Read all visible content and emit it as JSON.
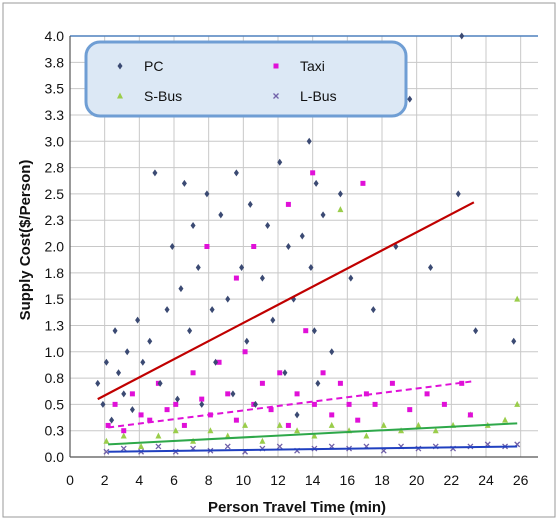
{
  "chart_data": {
    "type": "scatter",
    "title": "",
    "xlabel": "Person Travel Time (min)",
    "ylabel": "Supply Cost($/Person)",
    "xlim": [
      0,
      27
    ],
    "ylim": [
      0,
      4.0
    ],
    "x_ticks": [
      "0",
      "2",
      "4",
      "6",
      "8",
      "10",
      "12",
      "14",
      "16",
      "18",
      "20",
      "22",
      "24",
      "26"
    ],
    "y_ticks": [
      "0.0",
      "0.3",
      "0.5",
      "0.8",
      "1.0",
      "1.3",
      "1.5",
      "1.8",
      "2.0",
      "2.3",
      "2.5",
      "2.8",
      "3.0",
      "3.3",
      "3.5",
      "3.8",
      "4.0"
    ],
    "grid": true,
    "legend_position": "top-left",
    "colors": {
      "PC": "#3b4a73",
      "Taxi": "#e010d8",
      "S-Bus": "#9acd4a",
      "L-Bus": "#7060a8",
      "pc_trend": "#c00000",
      "taxi_trend": "#e010d8",
      "sbus_trend": "#2ea84a",
      "lbus_trend": "#2040c0"
    },
    "series": [
      {
        "name": "PC",
        "marker": "diamond",
        "points": [
          [
            1.6,
            0.7
          ],
          [
            1.9,
            0.5
          ],
          [
            2.1,
            0.9
          ],
          [
            2.4,
            0.35
          ],
          [
            2.6,
            1.2
          ],
          [
            2.8,
            0.8
          ],
          [
            3.1,
            0.6
          ],
          [
            3.3,
            1.0
          ],
          [
            3.6,
            0.45
          ],
          [
            3.9,
            1.3
          ],
          [
            4.2,
            0.9
          ],
          [
            4.6,
            1.1
          ],
          [
            4.9,
            2.7
          ],
          [
            5.2,
            0.7
          ],
          [
            5.6,
            1.4
          ],
          [
            5.9,
            2.0
          ],
          [
            6.2,
            0.55
          ],
          [
            6.4,
            1.6
          ],
          [
            6.6,
            2.6
          ],
          [
            6.9,
            1.2
          ],
          [
            7.1,
            2.2
          ],
          [
            7.4,
            1.8
          ],
          [
            7.6,
            0.5
          ],
          [
            7.9,
            2.5
          ],
          [
            8.2,
            1.4
          ],
          [
            8.4,
            0.9
          ],
          [
            8.7,
            2.3
          ],
          [
            9.1,
            1.5
          ],
          [
            9.4,
            0.6
          ],
          [
            9.6,
            2.7
          ],
          [
            9.9,
            1.8
          ],
          [
            10.2,
            1.1
          ],
          [
            10.4,
            2.4
          ],
          [
            10.7,
            0.5
          ],
          [
            11.1,
            1.7
          ],
          [
            11.4,
            2.2
          ],
          [
            11.7,
            1.3
          ],
          [
            12.1,
            2.8
          ],
          [
            12.4,
            0.8
          ],
          [
            12.6,
            2.0
          ],
          [
            12.9,
            1.5
          ],
          [
            13.1,
            0.4
          ],
          [
            13.4,
            2.1
          ],
          [
            13.8,
            3.0
          ],
          [
            13.9,
            1.8
          ],
          [
            14.1,
            1.2
          ],
          [
            14.2,
            2.6
          ],
          [
            14.3,
            0.7
          ],
          [
            14.6,
            2.3
          ],
          [
            15.1,
            1.0
          ],
          [
            15.6,
            2.5
          ],
          [
            16.2,
            1.7
          ],
          [
            17.5,
            1.4
          ],
          [
            18.8,
            2.0
          ],
          [
            19.6,
            3.4
          ],
          [
            20.8,
            1.8
          ],
          [
            22.4,
            2.5
          ],
          [
            22.6,
            4.0
          ],
          [
            23.4,
            1.2
          ],
          [
            25.6,
            1.1
          ]
        ]
      },
      {
        "name": "Taxi",
        "marker": "square",
        "points": [
          [
            2.2,
            0.3
          ],
          [
            2.6,
            0.5
          ],
          [
            3.1,
            0.25
          ],
          [
            3.6,
            0.6
          ],
          [
            4.1,
            0.4
          ],
          [
            4.6,
            0.35
          ],
          [
            5.1,
            0.7
          ],
          [
            5.6,
            0.45
          ],
          [
            6.1,
            0.5
          ],
          [
            6.6,
            0.3
          ],
          [
            7.1,
            0.8
          ],
          [
            7.6,
            0.55
          ],
          [
            8.1,
            0.4
          ],
          [
            8.6,
            0.9
          ],
          [
            9.1,
            0.6
          ],
          [
            9.6,
            0.35
          ],
          [
            10.1,
            1.0
          ],
          [
            10.6,
            0.5
          ],
          [
            11.1,
            0.7
          ],
          [
            11.6,
            0.45
          ],
          [
            12.1,
            0.8
          ],
          [
            12.6,
            0.3
          ],
          [
            13.1,
            0.6
          ],
          [
            13.6,
            1.2
          ],
          [
            14.1,
            0.5
          ],
          [
            14.6,
            0.8
          ],
          [
            15.1,
            0.4
          ],
          [
            15.6,
            0.7
          ],
          [
            16.1,
            0.5
          ],
          [
            16.6,
            0.35
          ],
          [
            17.1,
            0.6
          ],
          [
            17.6,
            0.5
          ],
          [
            18.6,
            0.7
          ],
          [
            19.6,
            0.45
          ],
          [
            20.6,
            0.6
          ],
          [
            21.6,
            0.5
          ],
          [
            22.6,
            0.7
          ],
          [
            23.1,
            0.4
          ],
          [
            7.9,
            2.0
          ],
          [
            9.6,
            1.7
          ],
          [
            14.0,
            2.7
          ],
          [
            16.9,
            2.6
          ],
          [
            10.6,
            2.0
          ],
          [
            12.6,
            2.4
          ]
        ]
      },
      {
        "name": "S-Bus",
        "marker": "triangle",
        "points": [
          [
            2.1,
            0.15
          ],
          [
            3.1,
            0.2
          ],
          [
            4.1,
            0.1
          ],
          [
            5.1,
            0.2
          ],
          [
            6.1,
            0.25
          ],
          [
            7.1,
            0.15
          ],
          [
            8.1,
            0.25
          ],
          [
            9.1,
            0.2
          ],
          [
            10.1,
            0.3
          ],
          [
            11.1,
            0.15
          ],
          [
            12.1,
            0.3
          ],
          [
            13.1,
            0.25
          ],
          [
            14.1,
            0.2
          ],
          [
            15.1,
            0.3
          ],
          [
            15.6,
            2.35
          ],
          [
            16.1,
            0.25
          ],
          [
            17.1,
            0.2
          ],
          [
            18.1,
            0.3
          ],
          [
            19.1,
            0.25
          ],
          [
            20.1,
            0.3
          ],
          [
            21.1,
            0.25
          ],
          [
            22.1,
            0.3
          ],
          [
            23.1,
            0.4
          ],
          [
            24.1,
            0.3
          ],
          [
            25.1,
            0.35
          ],
          [
            25.8,
            0.5
          ],
          [
            25.8,
            1.5
          ]
        ]
      },
      {
        "name": "L-Bus",
        "marker": "x",
        "points": [
          [
            2.1,
            0.05
          ],
          [
            3.1,
            0.08
          ],
          [
            4.1,
            0.05
          ],
          [
            5.1,
            0.1
          ],
          [
            6.1,
            0.05
          ],
          [
            7.1,
            0.08
          ],
          [
            8.1,
            0.06
          ],
          [
            9.1,
            0.1
          ],
          [
            10.1,
            0.05
          ],
          [
            11.1,
            0.08
          ],
          [
            12.1,
            0.1
          ],
          [
            13.1,
            0.06
          ],
          [
            14.1,
            0.08
          ],
          [
            15.1,
            0.1
          ],
          [
            16.1,
            0.08
          ],
          [
            17.1,
            0.1
          ],
          [
            18.1,
            0.06
          ],
          [
            19.1,
            0.1
          ],
          [
            20.1,
            0.08
          ],
          [
            21.1,
            0.1
          ],
          [
            22.1,
            0.08
          ],
          [
            23.1,
            0.1
          ],
          [
            24.1,
            0.12
          ],
          [
            25.1,
            0.1
          ],
          [
            25.8,
            0.12
          ]
        ]
      }
    ],
    "trendlines": [
      {
        "series": "PC",
        "from": [
          1.6,
          0.55
        ],
        "to": [
          23.3,
          2.42
        ]
      },
      {
        "series": "Taxi",
        "from": [
          2.2,
          0.28
        ],
        "to": [
          23.3,
          0.72
        ]
      },
      {
        "series": "S-Bus",
        "from": [
          2.2,
          0.12
        ],
        "to": [
          25.8,
          0.32
        ]
      },
      {
        "series": "L-Bus",
        "from": [
          2.2,
          0.05
        ],
        "to": [
          25.8,
          0.1
        ]
      }
    ]
  }
}
